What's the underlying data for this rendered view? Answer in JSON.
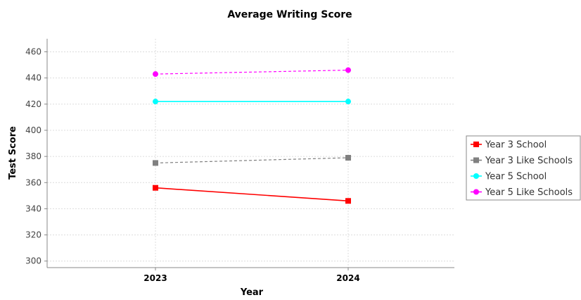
{
  "chart_data": {
    "type": "line",
    "title": "Average Writing Score",
    "xlabel": "Year",
    "ylabel": "Test Score",
    "categories": [
      "2023",
      "2024"
    ],
    "ylim": [
      295,
      470
    ],
    "yticks": [
      300,
      320,
      340,
      360,
      380,
      400,
      420,
      440,
      460
    ],
    "grid": true,
    "legend_position": "right",
    "series": [
      {
        "name": "Year 3 School",
        "values": [
          356,
          346
        ],
        "color": "#ff0000",
        "marker": "square",
        "dashed": false
      },
      {
        "name": "Year 3 Like Schools",
        "values": [
          375,
          379
        ],
        "color": "#808080",
        "marker": "square",
        "dashed": true
      },
      {
        "name": "Year 5 School",
        "values": [
          422,
          422
        ],
        "color": "#00ffff",
        "marker": "circle",
        "dashed": false
      },
      {
        "name": "Year 5 Like Schools",
        "values": [
          443,
          446
        ],
        "color": "#ff00ff",
        "marker": "circle",
        "dashed": true
      }
    ]
  }
}
